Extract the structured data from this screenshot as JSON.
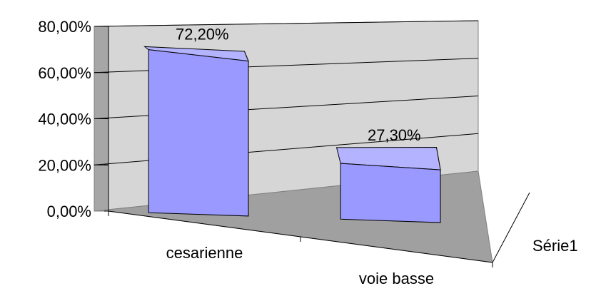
{
  "chart_data": {
    "type": "bar",
    "style": "3d-column",
    "categories": [
      "cesarienne",
      "voie basse"
    ],
    "series": [
      {
        "name": "Série1",
        "values": [
          72.2,
          27.3
        ],
        "labels": [
          "72,20%",
          "27,30%"
        ]
      }
    ],
    "depth_axis_label": "Série1",
    "ylim": [
      0,
      80
    ],
    "y_ticks": [
      {
        "value": 0,
        "label": "0,00%"
      },
      {
        "value": 20,
        "label": "20,00%"
      },
      {
        "value": 40,
        "label": "40,00%"
      },
      {
        "value": 60,
        "label": "60,00%"
      },
      {
        "value": 80,
        "label": "80,00%"
      }
    ],
    "grid": true,
    "legend": "none",
    "colors": {
      "bar_front": "#9999ff",
      "bar_top": "#b3b3ff",
      "bar_side": "#6666cc",
      "back_wall": "#d6d6d6",
      "side_wall": "#a6a6a6",
      "floor": "#a0a0a0",
      "gridline": "#000000"
    }
  }
}
